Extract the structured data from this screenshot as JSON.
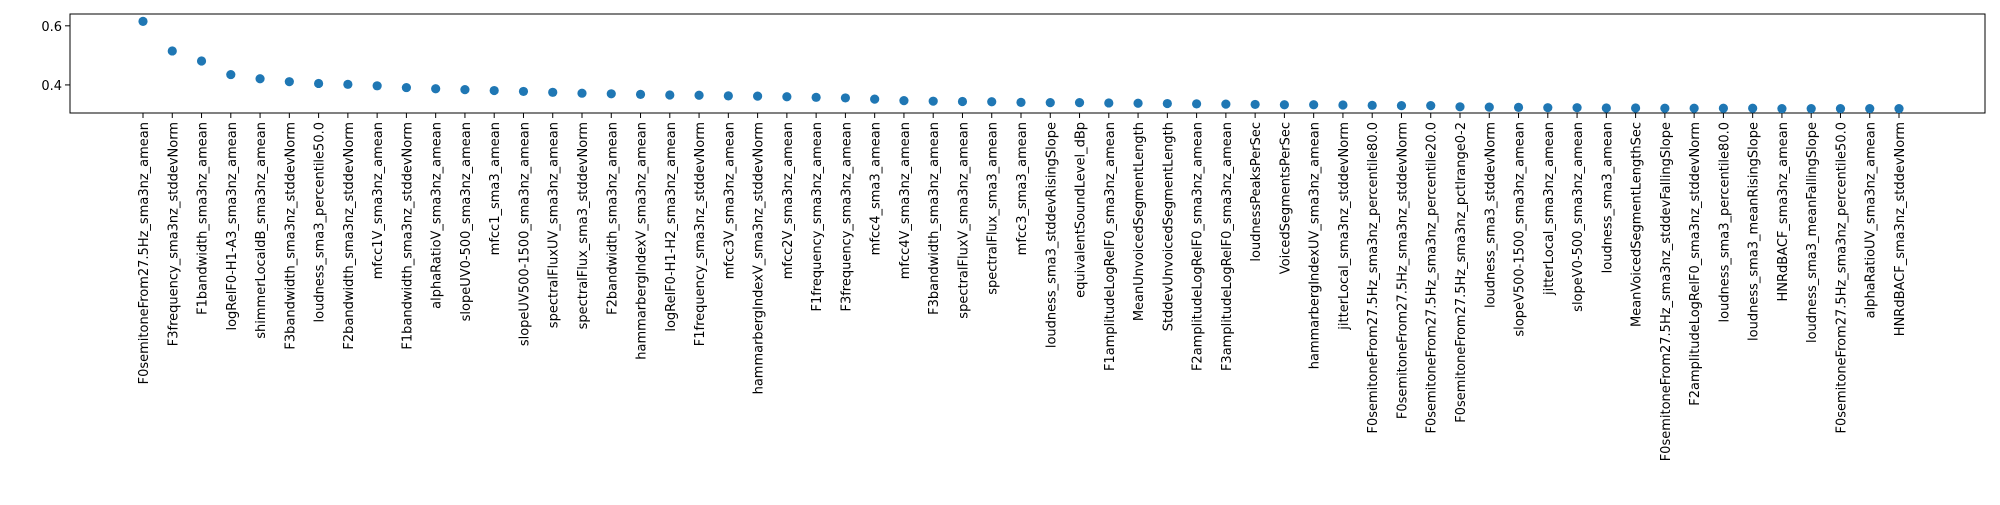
{
  "chart_data": {
    "type": "scatter",
    "title": "",
    "xlabel": "",
    "ylabel": "",
    "ylim": [
      0.305,
      0.64
    ],
    "yticks": [
      0.4,
      0.6
    ],
    "ytick_labels": [
      "0.4",
      "0.6"
    ],
    "grid": false,
    "marker_color": "#1f77b4",
    "categories": [
      "F0semitoneFrom27.5Hz_sma3nz_amean",
      "F3frequency_sma3nz_stddevNorm",
      "F1bandwidth_sma3nz_amean",
      "logRelF0-H1-A3_sma3nz_amean",
      "shimmerLocaldB_sma3nz_amean",
      "F3bandwidth_sma3nz_stddevNorm",
      "loudness_sma3_percentile50.0",
      "F2bandwidth_sma3nz_stddevNorm",
      "mfcc1V_sma3nz_amean",
      "F1bandwidth_sma3nz_stddevNorm",
      "alphaRatioV_sma3nz_amean",
      "slopeUV0-500_sma3nz_amean",
      "mfcc1_sma3_amean",
      "slopeUV500-1500_sma3nz_amean",
      "spectralFluxUV_sma3nz_amean",
      "spectralFlux_sma3_stddevNorm",
      "F2bandwidth_sma3nz_amean",
      "hammarbergIndexV_sma3nz_amean",
      "logRelF0-H1-H2_sma3nz_amean",
      "F1frequency_sma3nz_stddevNorm",
      "mfcc3V_sma3nz_amean",
      "hammarbergIndexV_sma3nz_stddevNorm",
      "mfcc2V_sma3nz_amean",
      "F1frequency_sma3nz_amean",
      "F3frequency_sma3nz_amean",
      "mfcc4_sma3_amean",
      "mfcc4V_sma3nz_amean",
      "F3bandwidth_sma3nz_amean",
      "spectralFluxV_sma3nz_amean",
      "spectralFlux_sma3_amean",
      "mfcc3_sma3_amean",
      "loudness_sma3_stddevRisingSlope",
      "equivalentSoundLevel_dBp",
      "F1amplitudeLogRelF0_sma3nz_amean",
      "MeanUnvoicedSegmentLength",
      "StddevUnvoicedSegmentLength",
      "F2amplitudeLogRelF0_sma3nz_amean",
      "F3amplitudeLogRelF0_sma3nz_amean",
      "loudnessPeaksPerSec",
      "VoicedSegmentsPerSec",
      "hammarbergIndexUV_sma3nz_amean",
      "jitterLocal_sma3nz_stddevNorm",
      "F0semitoneFrom27.5Hz_sma3nz_percentile80.0",
      "F0semitoneFrom27.5Hz_sma3nz_stddevNorm",
      "F0semitoneFrom27.5Hz_sma3nz_percentile20.0",
      "F0semitoneFrom27.5Hz_sma3nz_pctlrange0-2",
      "loudness_sma3_stddevNorm",
      "slopeV500-1500_sma3nz_amean",
      "jitterLocal_sma3nz_amean",
      "slopeV0-500_sma3nz_amean",
      "loudness_sma3_amean",
      "MeanVoicedSegmentLengthSec",
      "F0semitoneFrom27.5Hz_sma3nz_stddevFallingSlope",
      "F2amplitudeLogRelF0_sma3nz_stddevNorm",
      "loudness_sma3_percentile80.0",
      "loudness_sma3_meanRisingSlope",
      "HNRdBACF_sma3nz_amean",
      "loudness_sma3_meanFallingSlope",
      "F0semitoneFrom27.5Hz_sma3nz_percentile50.0",
      "alphaRatioUV_sma3nz_amean",
      "HNRdBACF_sma3nz_stddevNorm"
    ],
    "values": [
      0.615,
      0.515,
      0.481,
      0.435,
      0.421,
      0.411,
      0.405,
      0.402,
      0.397,
      0.391,
      0.387,
      0.384,
      0.381,
      0.378,
      0.375,
      0.372,
      0.37,
      0.368,
      0.366,
      0.365,
      0.363,
      0.362,
      0.36,
      0.358,
      0.356,
      0.352,
      0.347,
      0.345,
      0.344,
      0.343,
      0.341,
      0.34,
      0.34,
      0.339,
      0.338,
      0.337,
      0.336,
      0.335,
      0.334,
      0.333,
      0.333,
      0.332,
      0.331,
      0.33,
      0.33,
      0.326,
      0.325,
      0.324,
      0.323,
      0.323,
      0.322,
      0.322,
      0.321,
      0.321,
      0.321,
      0.321,
      0.32,
      0.32,
      0.32,
      0.32,
      0.32
    ]
  }
}
